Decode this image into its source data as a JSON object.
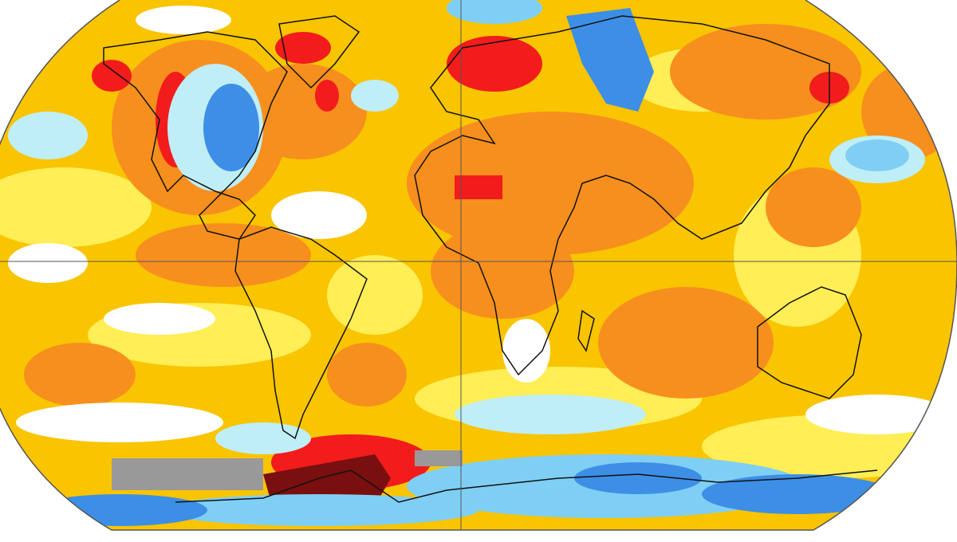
{
  "map": {
    "projection": "Robinson",
    "graticule": [
      "equator",
      "prime-meridian"
    ],
    "colors": {
      "base_warm": "#f9c400",
      "light_warm": "#ffee55",
      "orange": "#f78f1e",
      "red": "#f21c1c",
      "dark_red": "#7a0f0f",
      "neutral": "#ffffff",
      "light_cool": "#bfeef7",
      "cool": "#7fcff5",
      "blue": "#3d8fe6",
      "no_data": "#999999",
      "coastline": "#111111",
      "grid": "#555555"
    }
  }
}
